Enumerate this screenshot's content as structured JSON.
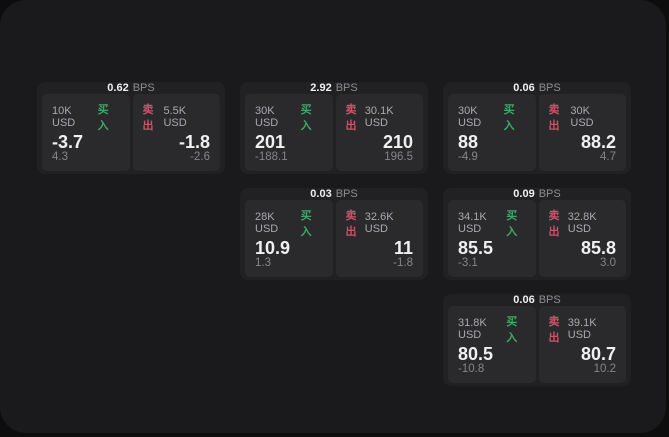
{
  "units": {
    "bps": "BPS"
  },
  "labels": {
    "buy": "买入",
    "sell": "卖出"
  },
  "colors": {
    "backdrop": "#0d0d0e",
    "panel": "#1a1a1c",
    "card": "#212124",
    "tile": "#2a2a2d",
    "buy_accent": "#3fa864",
    "sell_accent": "#cc5268",
    "price_text": "#f0f0f2",
    "muted_text": "#85858a"
  },
  "cards": [
    {
      "bps": "0.62",
      "buy": {
        "amount": "10K USD",
        "price": "-3.7",
        "delta": "4.3"
      },
      "sell": {
        "amount": "5.5K USD",
        "price": "-1.8",
        "delta": "-2.6"
      }
    },
    {
      "bps": "2.92",
      "buy": {
        "amount": "30K USD",
        "price": "201",
        "delta": "-188.1"
      },
      "sell": {
        "amount": "30.1K USD",
        "price": "210",
        "delta": "196.5"
      }
    },
    {
      "bps": "0.06",
      "buy": {
        "amount": "30K USD",
        "price": "88",
        "delta": "-4.9"
      },
      "sell": {
        "amount": "30K USD",
        "price": "88.2",
        "delta": "4.7"
      }
    },
    {
      "bps": "0.03",
      "buy": {
        "amount": "28K USD",
        "price": "10.9",
        "delta": "1.3"
      },
      "sell": {
        "amount": "32.6K USD",
        "price": "11",
        "delta": "-1.8"
      }
    },
    {
      "bps": "0.09",
      "buy": {
        "amount": "34.1K USD",
        "price": "85.5",
        "delta": "-3.1"
      },
      "sell": {
        "amount": "32.8K USD",
        "price": "85.8",
        "delta": "3.0"
      }
    },
    {
      "bps": "0.06",
      "buy": {
        "amount": "31.8K USD",
        "price": "80.5",
        "delta": "-10.8"
      },
      "sell": {
        "amount": "39.1K USD",
        "price": "80.7",
        "delta": "10.2"
      }
    }
  ]
}
